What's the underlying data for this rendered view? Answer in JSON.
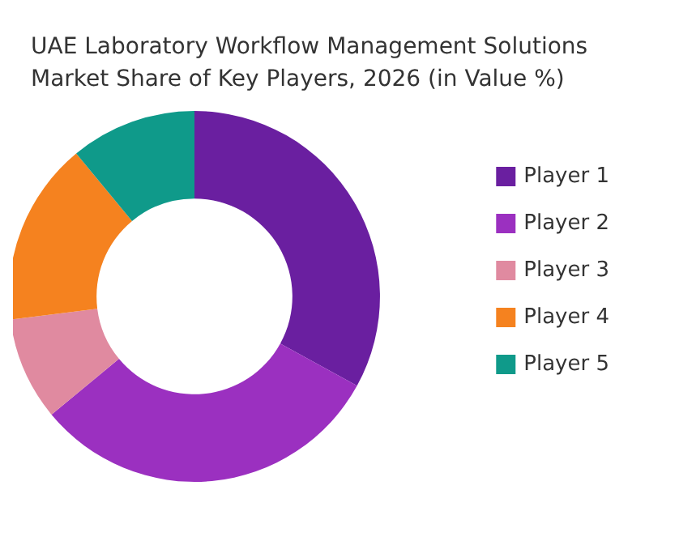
{
  "chart_data": {
    "type": "donut",
    "title": "UAE Laboratory Workflow Management Solutions\nMarket Share of Key Players, 2026 (in Value %)",
    "categories": [
      "Player 1",
      "Player 2",
      "Player 3",
      "Player 4",
      "Player 5"
    ],
    "values": [
      33,
      31,
      9,
      16,
      11
    ],
    "colors": [
      "#6a1fa0",
      "#9b30c0",
      "#e08aa0",
      "#f5821f",
      "#0f9a8a"
    ],
    "legend": "right"
  }
}
